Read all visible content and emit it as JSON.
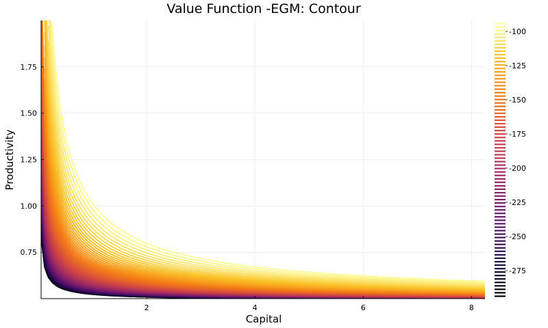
{
  "chart_data": {
    "type": "contour",
    "title": "Value Function -EGM: Contour",
    "xlabel": "Capital",
    "ylabel": "Productivity",
    "xlim": [
      0.05,
      8.25
    ],
    "ylim": [
      0.5,
      2.0
    ],
    "x_ticks": [
      2,
      4,
      6,
      8
    ],
    "x_tick_labels": [
      "2",
      "4",
      "6",
      "8"
    ],
    "y_ticks": [
      0.75,
      1.0,
      1.25,
      1.5,
      1.75
    ],
    "y_tick_labels": [
      "0.75",
      "1.00",
      "1.25",
      "1.50",
      "1.75"
    ],
    "grid": true,
    "colorbar": {
      "min": -295,
      "max": -93,
      "ticks": [
        -100,
        -125,
        -150,
        -175,
        -200,
        -225,
        -250,
        -275
      ],
      "tick_labels": [
        "-100",
        "-125",
        "-150",
        "-175",
        "-200",
        "-225",
        "-250",
        "-275"
      ],
      "colormap": "inferno-style (black → purple → red → orange → yellow)"
    },
    "levels_count": 80
  }
}
